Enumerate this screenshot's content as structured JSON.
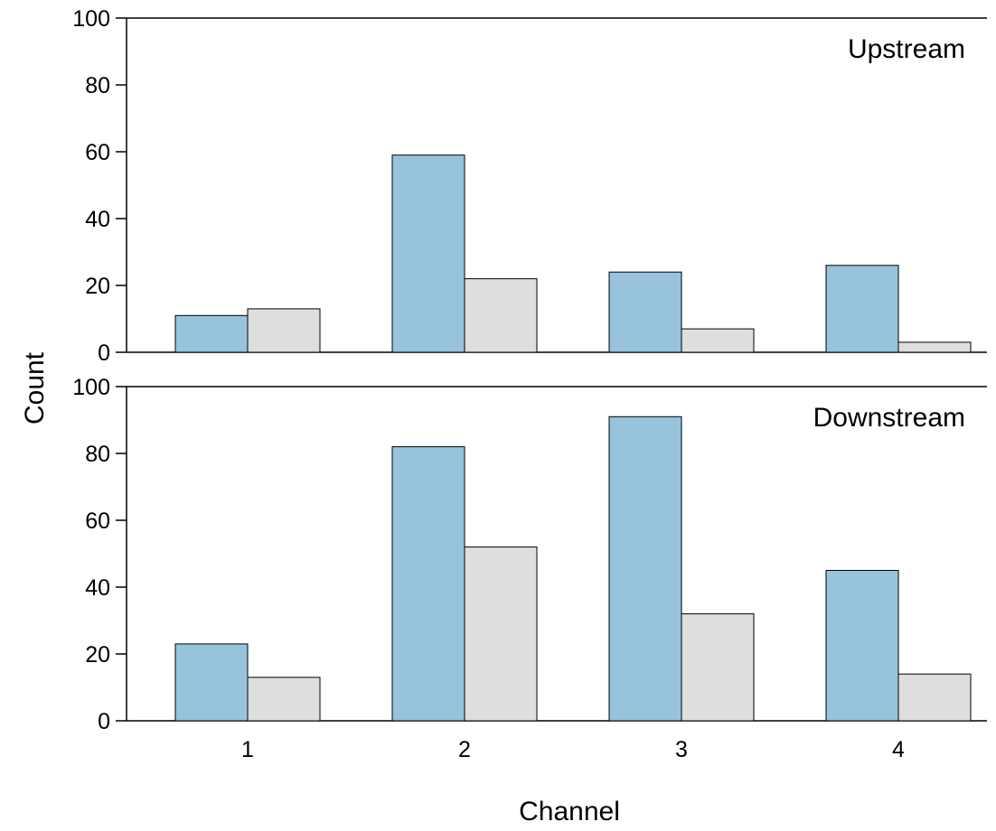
{
  "chart_data": {
    "type": "bar",
    "xlabel": "Channel",
    "ylabel": "Count",
    "categories": [
      "1",
      "2",
      "3",
      "4"
    ],
    "yticks": [
      "0",
      "20",
      "40",
      "60",
      "80",
      "100"
    ],
    "ylim": [
      0,
      100
    ],
    "grid": false,
    "legend": "none",
    "colors": [
      "#97c3dd",
      "#dedede"
    ],
    "panels": [
      {
        "label": "Upstream",
        "series": [
          {
            "values": [
              11,
              59,
              24,
              26
            ]
          },
          {
            "values": [
              13,
              22,
              7,
              3
            ]
          }
        ]
      },
      {
        "label": "Downstream",
        "series": [
          {
            "values": [
              23,
              82,
              91,
              45
            ]
          },
          {
            "values": [
              13,
              52,
              32,
              14
            ]
          }
        ]
      }
    ]
  }
}
